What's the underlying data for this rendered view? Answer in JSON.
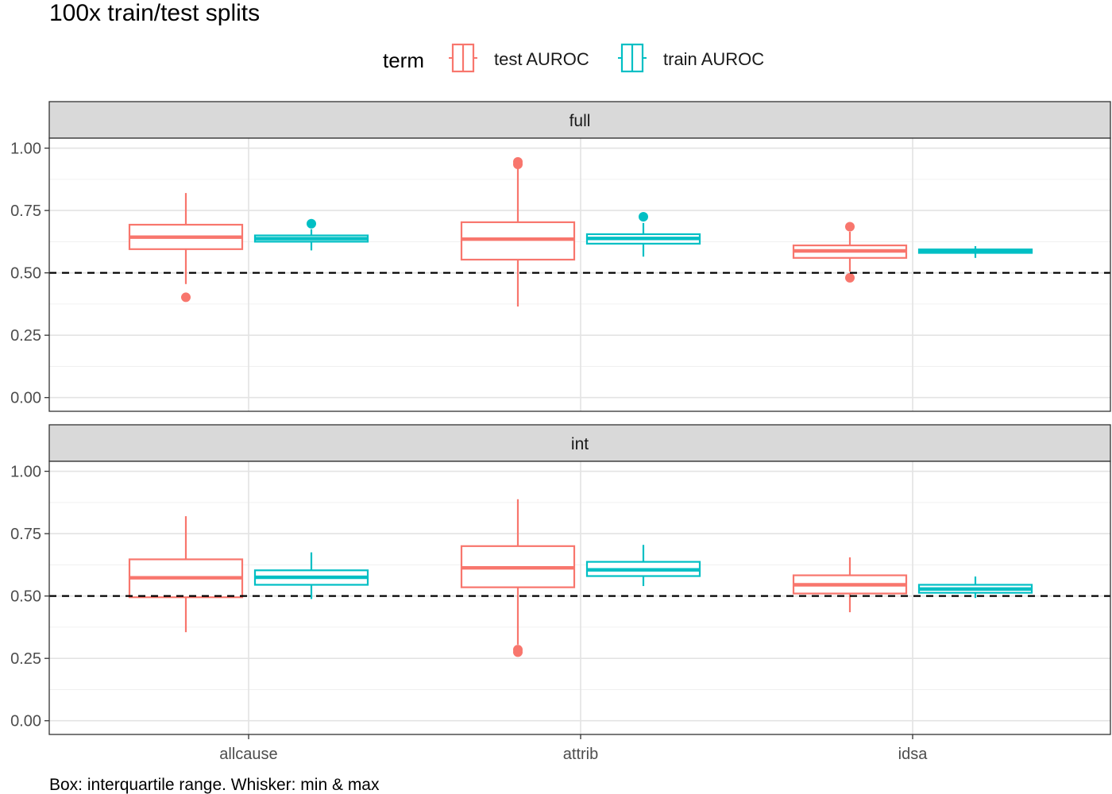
{
  "chart_data": {
    "type": "boxplot",
    "title": "100x train/test splits",
    "caption": "Box: interquartile range. Whisker: min & max",
    "legend": {
      "title": "term",
      "position": "top",
      "entries": [
        {
          "label": "test AUROC",
          "color": "#F8766D"
        },
        {
          "label": "train AUROC",
          "color": "#00BFC4"
        }
      ]
    },
    "categories": [
      "allcause",
      "attrib",
      "idsa"
    ],
    "y_ticks": [
      "0.00",
      "0.25",
      "0.50",
      "0.75",
      "1.00"
    ],
    "ylim": [
      0,
      1
    ],
    "reference_line": 0.5,
    "grid": true,
    "panels": [
      {
        "name": "full",
        "groups": [
          {
            "category": "allcause",
            "term": "test AUROC",
            "min": 0.455,
            "q1": 0.595,
            "median": 0.643,
            "q3": 0.693,
            "max": 0.82,
            "outliers": [
              0.402
            ]
          },
          {
            "category": "allcause",
            "term": "train AUROC",
            "min": 0.59,
            "q1": 0.625,
            "median": 0.637,
            "q3": 0.65,
            "max": 0.675,
            "outliers": [
              0.697
            ]
          },
          {
            "category": "attrib",
            "term": "test AUROC",
            "min": 0.365,
            "q1": 0.553,
            "median": 0.635,
            "q3": 0.703,
            "max": 0.925,
            "outliers": [
              0.935,
              0.945
            ]
          },
          {
            "category": "attrib",
            "term": "train AUROC",
            "min": 0.565,
            "q1": 0.617,
            "median": 0.638,
            "q3": 0.655,
            "max": 0.7,
            "outliers": [
              0.725
            ]
          },
          {
            "category": "idsa",
            "term": "test AUROC",
            "min": 0.505,
            "q1": 0.56,
            "median": 0.588,
            "q3": 0.61,
            "max": 0.665,
            "outliers": [
              0.685,
              0.48
            ]
          },
          {
            "category": "idsa",
            "term": "train AUROC",
            "min": 0.56,
            "q1": 0.58,
            "median": 0.587,
            "q3": 0.594,
            "max": 0.607,
            "outliers": []
          }
        ]
      },
      {
        "name": "int",
        "groups": [
          {
            "category": "allcause",
            "term": "test AUROC",
            "min": 0.355,
            "q1": 0.495,
            "median": 0.573,
            "q3": 0.647,
            "max": 0.82,
            "outliers": []
          },
          {
            "category": "allcause",
            "term": "train AUROC",
            "min": 0.488,
            "q1": 0.545,
            "median": 0.575,
            "q3": 0.603,
            "max": 0.675,
            "outliers": []
          },
          {
            "category": "attrib",
            "term": "test AUROC",
            "min": 0.305,
            "q1": 0.535,
            "median": 0.613,
            "q3": 0.7,
            "max": 0.888,
            "outliers": [
              0.285,
              0.275
            ]
          },
          {
            "category": "attrib",
            "term": "train AUROC",
            "min": 0.54,
            "q1": 0.58,
            "median": 0.605,
            "q3": 0.637,
            "max": 0.705,
            "outliers": []
          },
          {
            "category": "idsa",
            "term": "test AUROC",
            "min": 0.435,
            "q1": 0.51,
            "median": 0.545,
            "q3": 0.583,
            "max": 0.655,
            "outliers": []
          },
          {
            "category": "idsa",
            "term": "train AUROC",
            "min": 0.492,
            "q1": 0.513,
            "median": 0.528,
            "q3": 0.545,
            "max": 0.578,
            "outliers": []
          }
        ]
      }
    ]
  }
}
